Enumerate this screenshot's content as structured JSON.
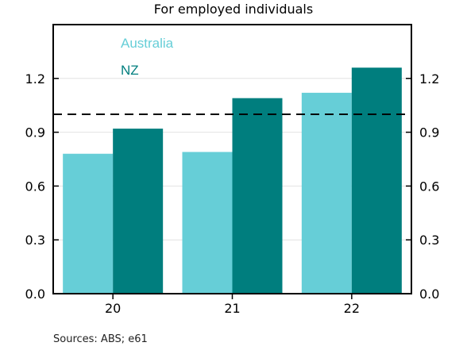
{
  "subtitle": "For employed individuals",
  "source": "Sources: ABS; e61",
  "colors": {
    "australia": "#66CED7",
    "nz": "#007E7E",
    "reference": "#000000"
  },
  "chart_data": {
    "type": "bar",
    "subtitle": "For employed individuals",
    "categories": [
      "20",
      "21",
      "22"
    ],
    "series": [
      {
        "name": "Australia",
        "values": [
          0.78,
          0.79,
          1.12
        ]
      },
      {
        "name": "NZ",
        "values": [
          0.92,
          1.09,
          1.26
        ]
      }
    ],
    "ylim": [
      0,
      1.5
    ],
    "yticks": [
      0.0,
      0.3,
      0.6,
      0.9,
      1.2
    ],
    "ytick_labels": [
      "0.0",
      "0.3",
      "0.6",
      "0.9",
      "1.2"
    ],
    "reference_line": 1.0,
    "legend_position": "top-left",
    "grid": true,
    "dual_axis_labels": true
  }
}
